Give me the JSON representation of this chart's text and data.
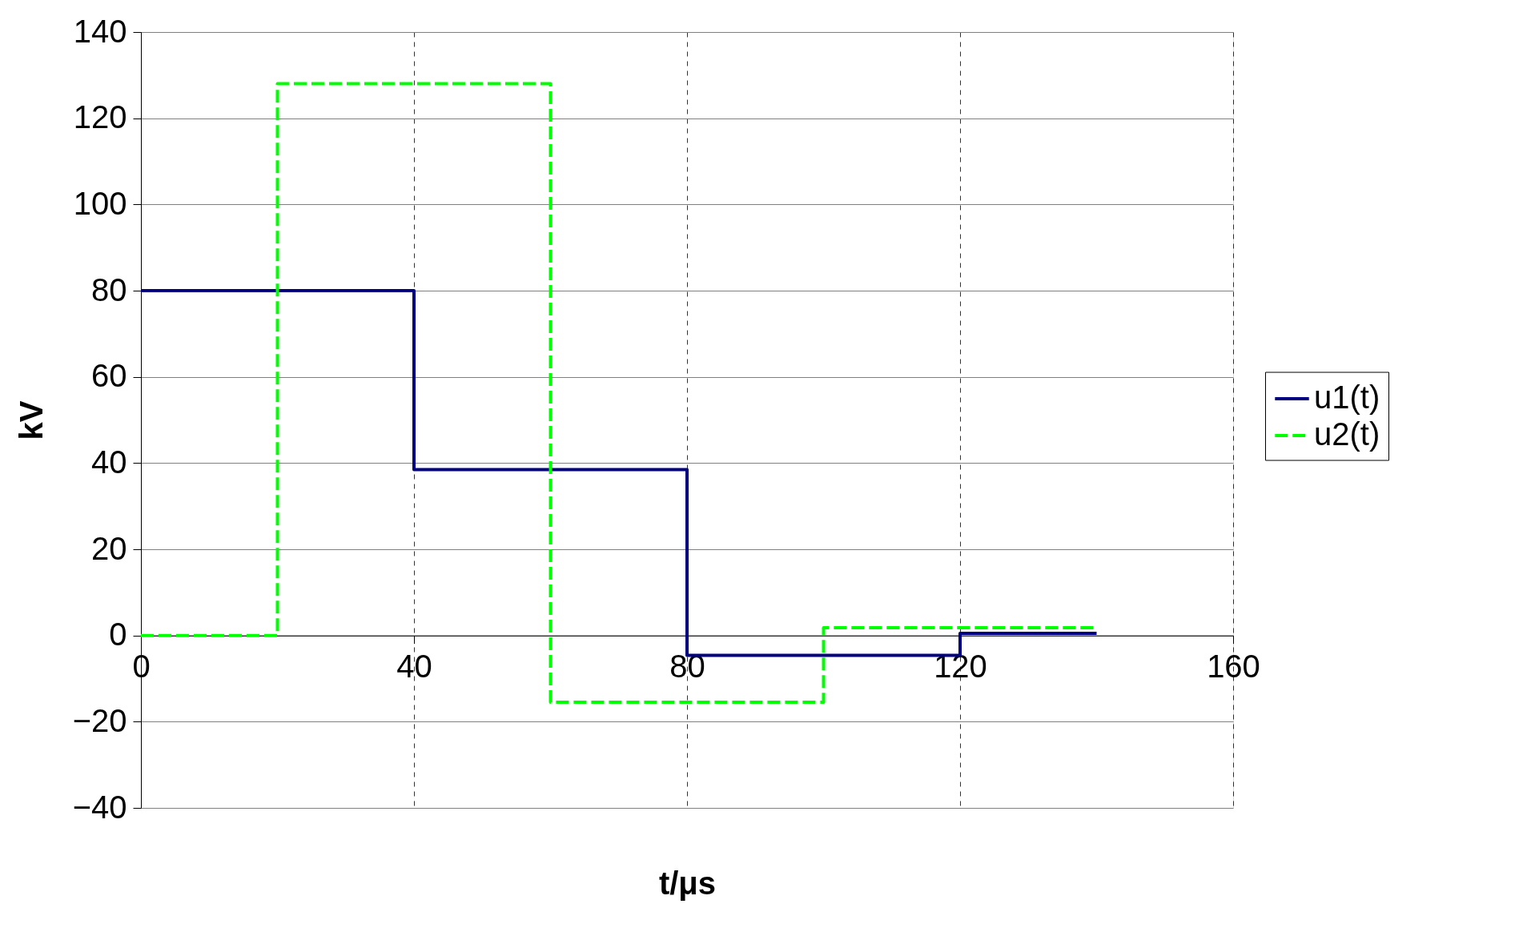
{
  "chart_data": {
    "type": "step",
    "xlabel": "t/μs",
    "ylabel": "kV",
    "xlim": [
      0,
      160
    ],
    "xticks": [
      0,
      40,
      80,
      120,
      160
    ],
    "ylim": [
      -40,
      140
    ],
    "yticks": [
      -40,
      -20,
      0,
      20,
      40,
      60,
      80,
      100,
      120,
      140
    ],
    "grid": true,
    "legend": "right",
    "series": [
      {
        "name": "u1(t)",
        "color": "#000080",
        "line_style": "solid",
        "x": [
          0,
          40,
          80,
          120,
          140
        ],
        "values": [
          80,
          38.5,
          -4.6,
          0.5,
          0.5
        ]
      },
      {
        "name": "u2(t)",
        "color": "#00ff00",
        "line_style": "dashed",
        "x": [
          0,
          20,
          60,
          100,
          140
        ],
        "values": [
          0,
          128,
          -15.5,
          1.8,
          1.8
        ]
      }
    ]
  }
}
